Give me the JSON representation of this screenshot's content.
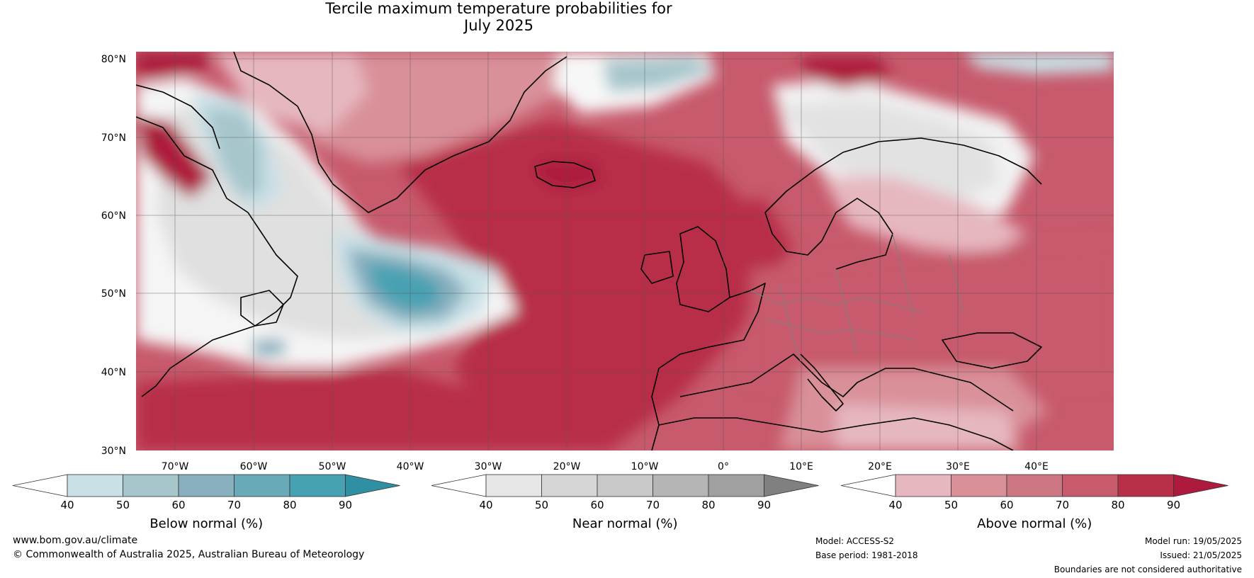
{
  "title": {
    "line1": "Tercile maximum temperature probabilities for",
    "line2": "July 2025"
  },
  "map": {
    "region": "North Atlantic and Europe",
    "lat_labels": [
      "80°N",
      "70°N",
      "60°N",
      "50°N",
      "40°N",
      "30°N"
    ],
    "lon_labels": [
      "70°W",
      "60°W",
      "50°W",
      "40°W",
      "30°W",
      "20°W",
      "10°W",
      "0°",
      "10°E",
      "20°E",
      "30°E",
      "40°E"
    ],
    "colors": {
      "below": [
        "#c8e0e6",
        "#a6c6cc",
        "#87afbe",
        "#68aab8",
        "#46a1b2",
        "#2f8fa3"
      ],
      "near": [
        "#e6e6e6",
        "#d6d6d6",
        "#c8c8c8",
        "#b5b5b5",
        "#a0a0a0",
        "#808080"
      ],
      "above": [
        "#e6b7bf",
        "#d99099",
        "#cd7683",
        "#c75a6c",
        "#b82f48",
        "#ad1a3d"
      ]
    }
  },
  "colorbars": [
    {
      "title": "Below normal (%)",
      "ticks": [
        "40",
        "50",
        "60",
        "70",
        "80",
        "90"
      ],
      "colors": [
        "#c8e0e6",
        "#a6c6cc",
        "#87afbe",
        "#68aab8",
        "#46a1b2"
      ],
      "extend_color": "#2f8fa3"
    },
    {
      "title": "Near normal (%)",
      "ticks": [
        "40",
        "50",
        "60",
        "70",
        "80",
        "90"
      ],
      "colors": [
        "#e6e6e6",
        "#d6d6d6",
        "#c8c8c8",
        "#b5b5b5",
        "#a0a0a0"
      ],
      "extend_color": "#808080"
    },
    {
      "title": "Above normal (%)",
      "ticks": [
        "40",
        "50",
        "60",
        "70",
        "80",
        "90"
      ],
      "colors": [
        "#e6b7bf",
        "#d99099",
        "#cd7683",
        "#c75a6c",
        "#b82f48"
      ],
      "extend_color": "#ad1a3d"
    }
  ],
  "footer": {
    "website": "www.bom.gov.au/climate",
    "copyright": "© Commonwealth of Australia 2025, Australian Bureau of Meteorology",
    "model": "Model: ACCESS-S2",
    "base_period": "Base period: 1981-2018",
    "model_run": "Model run: 19/05/2025",
    "issued": "Issued: 21/05/2025",
    "disclaimer": "Boundaries are not considered authoritative"
  }
}
